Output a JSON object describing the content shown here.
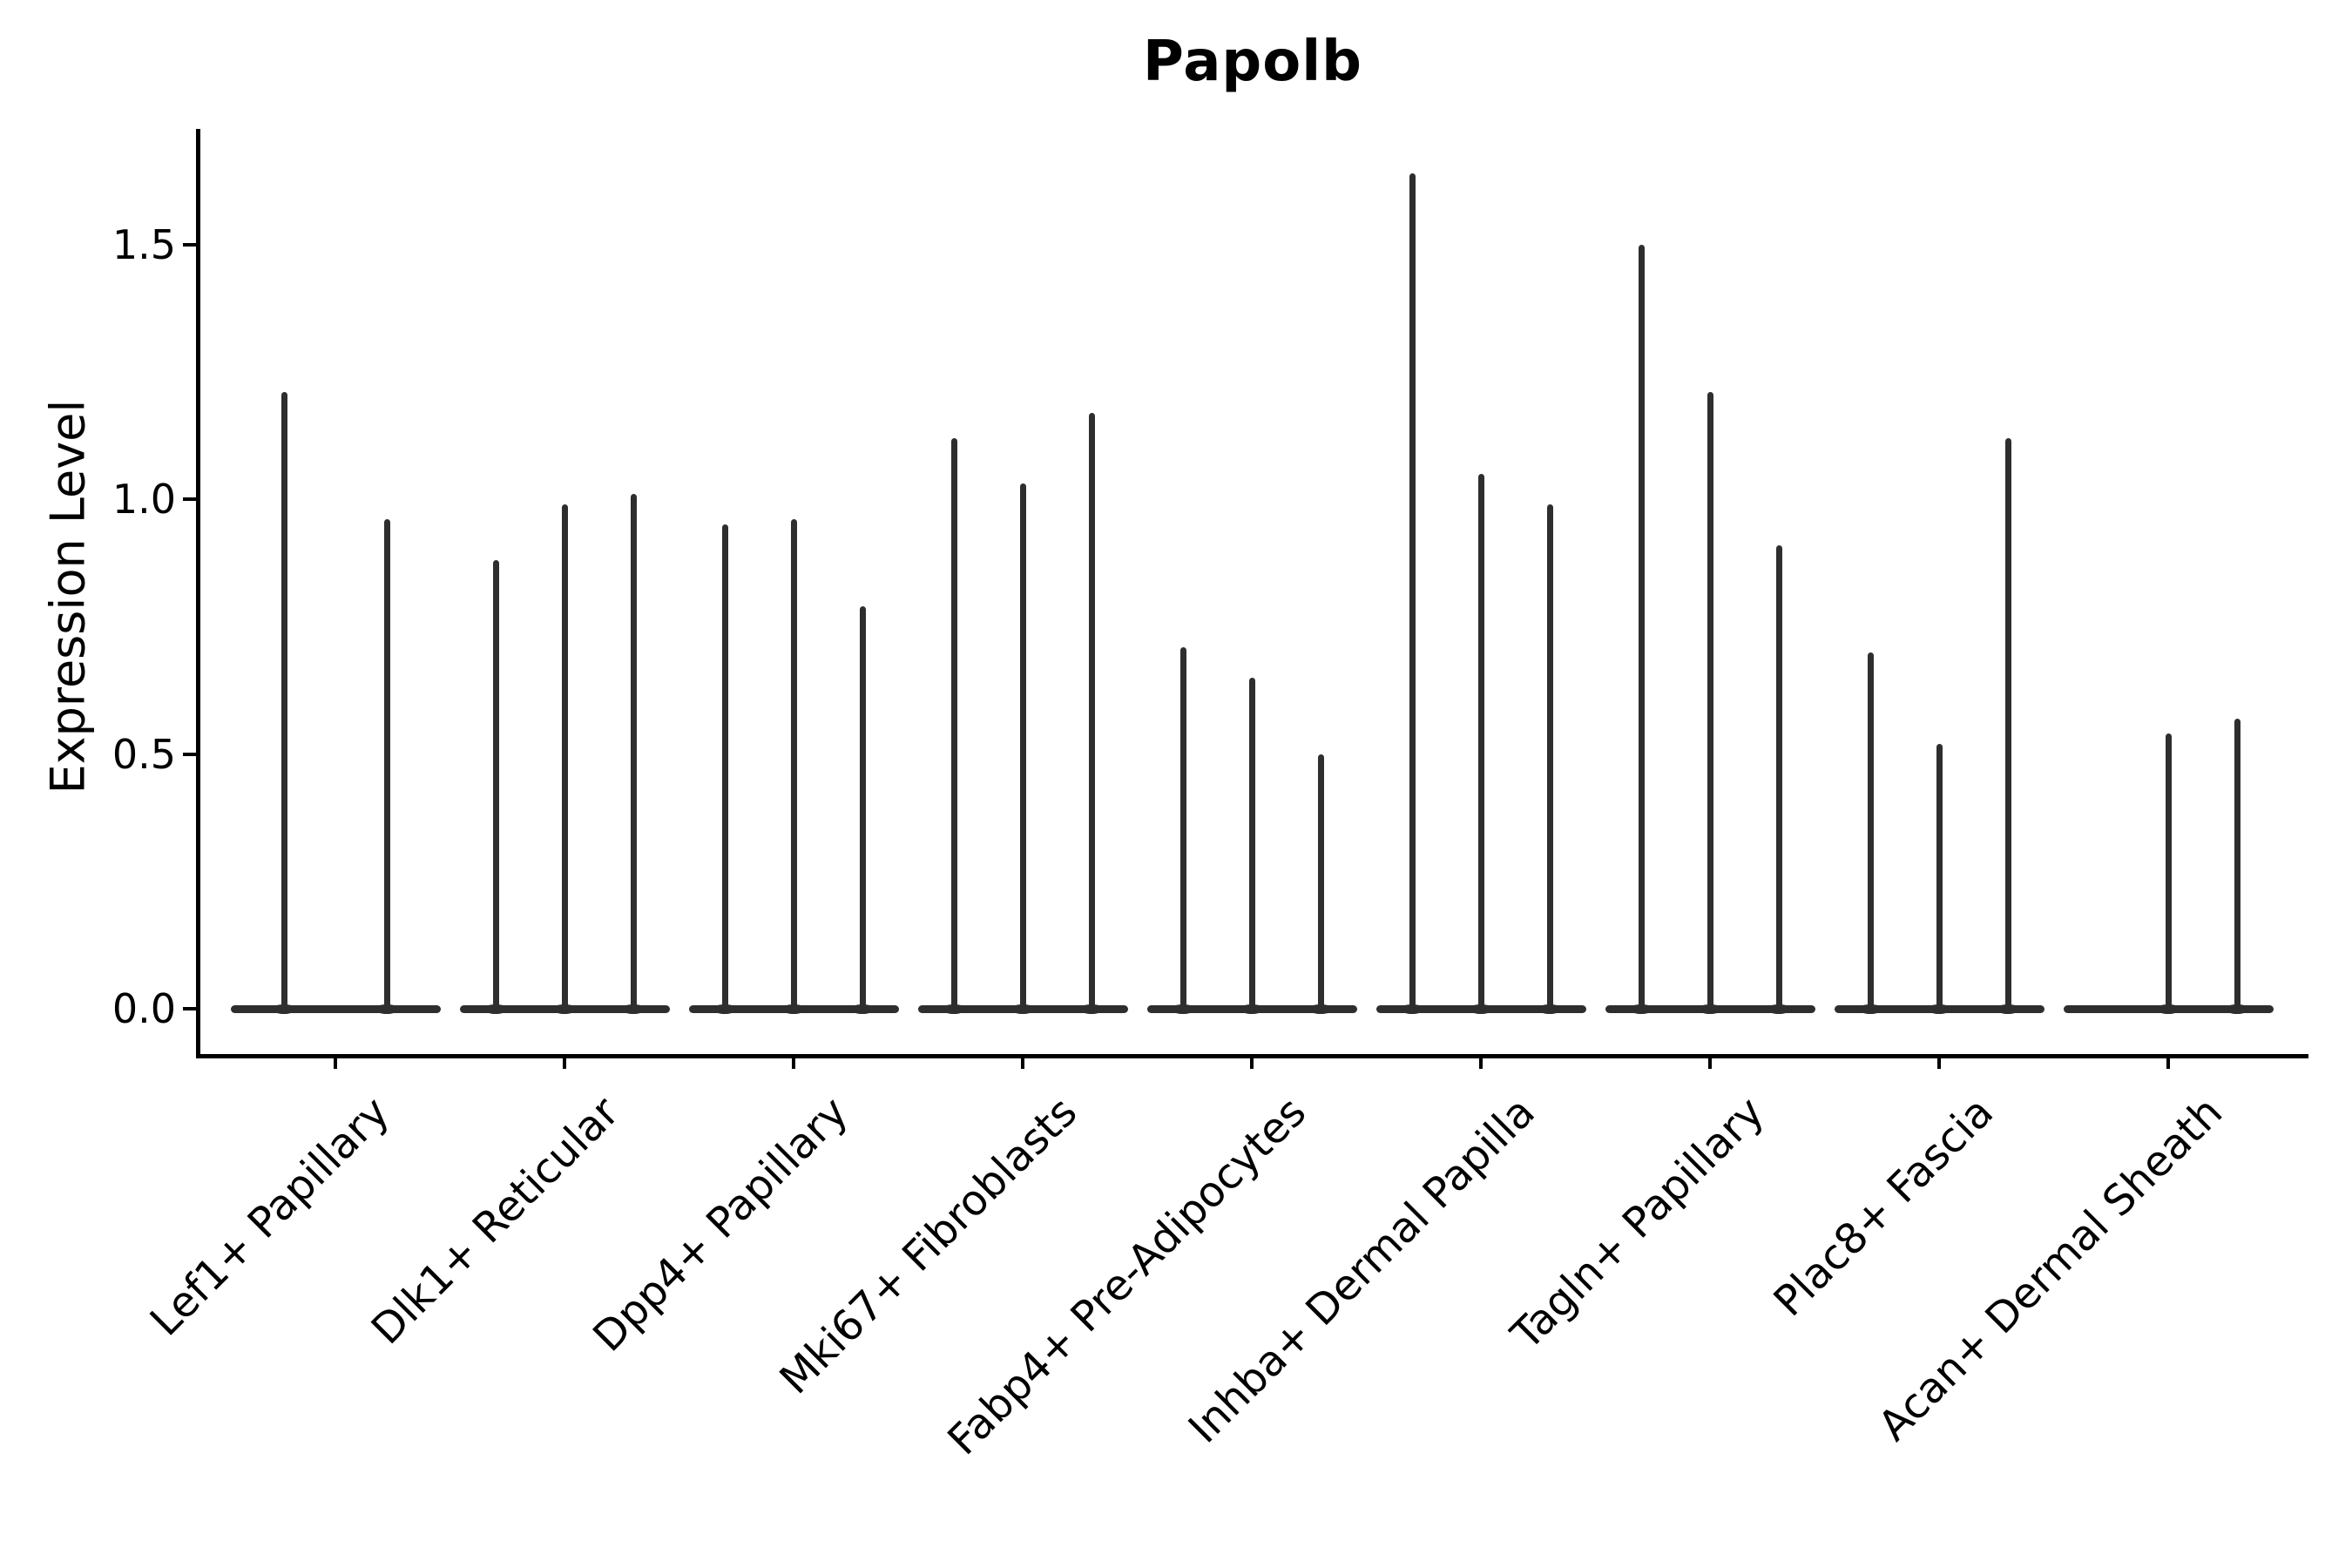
{
  "title": "Papolb",
  "y_axis": {
    "label": "Expression Level",
    "tick_labels": [
      "0.0",
      "0.5",
      "1.0",
      "1.5"
    ]
  },
  "x_axis": {
    "tick_labels": [
      "Lef1+ Papillary",
      "Dlk1+ Reticular",
      "Dpp4+ Papillary",
      "Mki67+ Fibroblasts",
      "Fabp4+ Pre-Adipocytes",
      "Inhba+ Dermal Papilla",
      "Tagln+ Papillary",
      "Plac8+ Fascia",
      "Acan+ Dermal Sheath"
    ]
  },
  "colors": {
    "violin": "#2e2e2e",
    "axis": "#000000",
    "background": "#ffffff"
  },
  "chart_data": {
    "type": "violin",
    "title": "Papolb",
    "xlabel": "",
    "ylabel": "Expression Level",
    "ylim": [
      -0.1,
      1.72
    ],
    "yticks": [
      0.0,
      0.5,
      1.0,
      1.5
    ],
    "ytick_labels": [
      "0.0",
      "0.5",
      "1.0",
      "1.5"
    ],
    "grid": false,
    "legend": "none",
    "description": "Seurat/scanpy-style violin plot of Papolb expression; each cluster shows 2-3 needle-thin violins (sub-sample densities concentrated at 0) whose spikes reach the listed maximum expression values.",
    "categories": [
      "Lef1+ Papillary",
      "Dlk1+ Reticular",
      "Dpp4+ Papillary",
      "Mki67+ Fibroblasts",
      "Fabp4+ Pre-Adipocytes",
      "Inhba+ Dermal Papilla",
      "Tagln+ Papillary",
      "Plac8+ Fascia",
      "Acan+ Dermal Sheath"
    ],
    "groups": [
      {
        "label": "Lef1+ Papillary",
        "spike_maxima": [
          1.21,
          0.96
        ]
      },
      {
        "label": "Dlk1+ Reticular",
        "spike_maxima": [
          0.88,
          0.99,
          1.01
        ]
      },
      {
        "label": "Dpp4+ Papillary",
        "spike_maxima": [
          0.95,
          0.96,
          0.79
        ]
      },
      {
        "label": "Mki67+ Fibroblasts",
        "spike_maxima": [
          1.12,
          1.03,
          1.17
        ]
      },
      {
        "label": "Fabp4+ Pre-Adipocytes",
        "spike_maxima": [
          0.71,
          0.65,
          0.5
        ]
      },
      {
        "label": "Inhba+ Dermal Papilla",
        "spike_maxima": [
          1.64,
          1.05,
          0.99
        ]
      },
      {
        "label": "Tagln+ Papillary",
        "spike_maxima": [
          1.5,
          1.21,
          0.91
        ]
      },
      {
        "label": "Plac8+ Fascia",
        "spike_maxima": [
          0.7,
          0.52,
          1.12
        ]
      },
      {
        "label": "Acan+ Dermal Sheath",
        "spike_maxima": [
          0.0,
          0.54,
          0.57
        ]
      }
    ]
  }
}
